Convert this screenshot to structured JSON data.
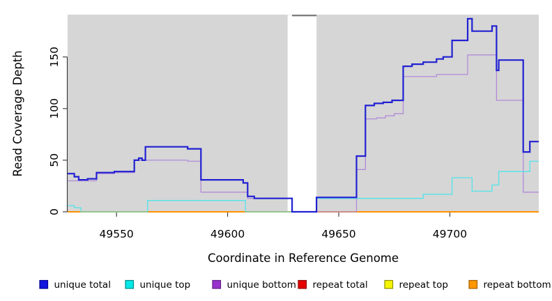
{
  "chart_data": {
    "type": "line",
    "interpolation": "step-after",
    "title": "",
    "xlabel": "Coordinate in Reference Genome",
    "ylabel": "Read Coverage Depth",
    "xlim": [
      49528,
      49740
    ],
    "ylim": [
      0,
      191
    ],
    "xticks": [
      49550,
      49600,
      49650,
      49700
    ],
    "yticks": [
      0,
      50,
      100,
      150
    ],
    "grid": false,
    "plot_background": "#d6d6d6",
    "page_background": "#ffffff",
    "gap_region": {
      "from": 49627,
      "to": 49640,
      "cap_from": 49629,
      "cap_to": 49640,
      "cap_color": "#7d7d7d",
      "fill": "#ffffff"
    },
    "legend_position": "bottom",
    "series": [
      {
        "name": "unique total",
        "color": "#2121d2",
        "line_width": 2.2,
        "points": [
          [
            49528,
            37
          ],
          [
            49531,
            34
          ],
          [
            49533,
            31
          ],
          [
            49537,
            32
          ],
          [
            49541,
            38
          ],
          [
            49549,
            39
          ],
          [
            49558,
            50
          ],
          [
            49560,
            52
          ],
          [
            49561.5,
            50
          ],
          [
            49563,
            63
          ],
          [
            49582,
            61
          ],
          [
            49588,
            31
          ],
          [
            49607,
            28
          ],
          [
            49609,
            15
          ],
          [
            49612,
            13
          ],
          [
            49629,
            0
          ],
          [
            49640,
            14
          ],
          [
            49658,
            54
          ],
          [
            49662,
            103
          ],
          [
            49666,
            105
          ],
          [
            49670,
            106
          ],
          [
            49674,
            108
          ],
          [
            49679,
            141
          ],
          [
            49683,
            143
          ],
          [
            49688,
            145
          ],
          [
            49694,
            148
          ],
          [
            49697,
            150
          ],
          [
            49701,
            166
          ],
          [
            49708,
            187
          ],
          [
            49710,
            175
          ],
          [
            49719,
            180
          ],
          [
            49721,
            137
          ],
          [
            49722,
            147
          ],
          [
            49733,
            58
          ],
          [
            49736,
            68
          ]
        ]
      },
      {
        "name": "unique top",
        "color": "#53e3e8",
        "line_width": 1.3,
        "points": [
          [
            49528,
            6
          ],
          [
            49531,
            4
          ],
          [
            49534,
            0
          ],
          [
            49564,
            11
          ],
          [
            49608,
            0
          ],
          [
            49640,
            13
          ],
          [
            49688,
            17
          ],
          [
            49701,
            33
          ],
          [
            49710,
            20
          ],
          [
            49719,
            26
          ],
          [
            49722,
            39
          ],
          [
            49736,
            49
          ]
        ]
      },
      {
        "name": "unique bottom",
        "color": "#b18ad8",
        "line_width": 1.3,
        "points": [
          [
            49528,
            30
          ],
          [
            49541,
            37
          ],
          [
            49549,
            38
          ],
          [
            49558,
            50
          ],
          [
            49582,
            49
          ],
          [
            49588,
            19
          ],
          [
            49609,
            13
          ],
          [
            49629,
            0
          ],
          [
            49658,
            41
          ],
          [
            49662,
            90
          ],
          [
            49667,
            91
          ],
          [
            49671,
            93
          ],
          [
            49675,
            95
          ],
          [
            49679,
            131
          ],
          [
            49694,
            133
          ],
          [
            49708,
            152
          ],
          [
            49721,
            108
          ],
          [
            49733,
            19
          ]
        ]
      },
      {
        "name": "repeat total",
        "color": "#dd0000",
        "line_width": 1.3,
        "points": [
          [
            49528,
            0
          ]
        ]
      },
      {
        "name": "repeat top",
        "color": "#f2f200",
        "line_width": 1.3,
        "points": [
          [
            49528,
            0
          ]
        ]
      },
      {
        "name": "repeat bottom",
        "color": "#ff9000",
        "line_width": 2.0,
        "points": [
          [
            49528,
            0
          ]
        ]
      }
    ],
    "legend": [
      {
        "label": "unique total",
        "fill": "#1414e0",
        "border": "#000090"
      },
      {
        "label": "unique top",
        "fill": "#00e8e8",
        "border": "#008b8b"
      },
      {
        "label": "unique bottom",
        "fill": "#9932cc",
        "border": "#5e1d86"
      },
      {
        "label": "repeat total",
        "fill": "#e60000",
        "border": "#900000"
      },
      {
        "label": "repeat top",
        "fill": "#f5f500",
        "border": "#909000"
      },
      {
        "label": "repeat bottom",
        "fill": "#ff9700",
        "border": "#a06000"
      }
    ]
  }
}
